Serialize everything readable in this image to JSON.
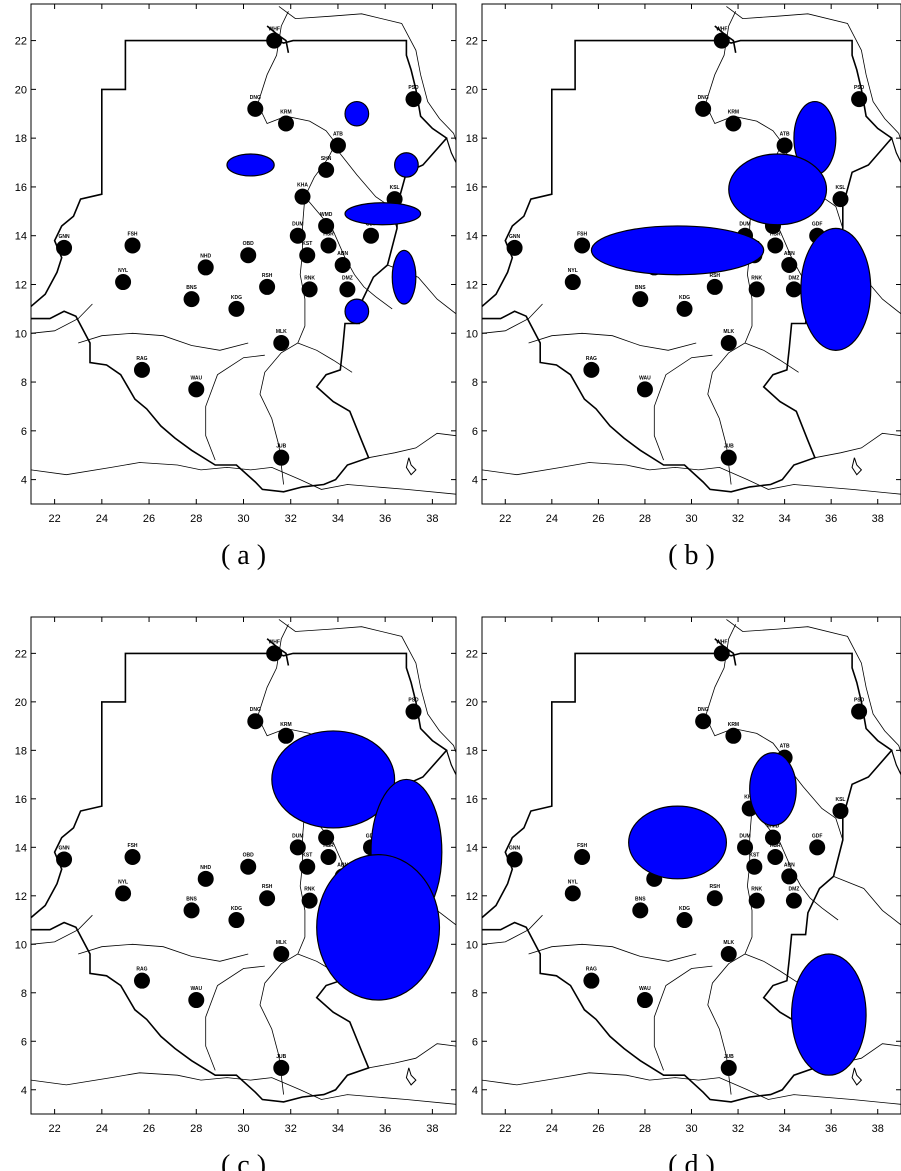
{
  "panels": [
    {
      "caption": "( a )",
      "ellipses": [
        {
          "lon": 34.8,
          "lat": 19.0,
          "rx": 0.5,
          "ry": 0.5
        },
        {
          "lon": 30.3,
          "lat": 16.9,
          "rx": 1.0,
          "ry": 0.45
        },
        {
          "lon": 36.9,
          "lat": 16.9,
          "rx": 0.5,
          "ry": 0.5
        },
        {
          "lon": 35.9,
          "lat": 14.9,
          "rx": 1.6,
          "ry": 0.45
        },
        {
          "lon": 36.8,
          "lat": 12.3,
          "rx": 0.5,
          "ry": 1.1
        },
        {
          "lon": 34.8,
          "lat": 10.9,
          "rx": 0.5,
          "ry": 0.5
        }
      ]
    },
    {
      "caption": "( b )",
      "ellipses": [
        {
          "lon": 35.3,
          "lat": 18.0,
          "rx": 0.9,
          "ry": 1.5
        },
        {
          "lon": 33.7,
          "lat": 15.9,
          "rx": 2.1,
          "ry": 1.45
        },
        {
          "lon": 29.4,
          "lat": 13.4,
          "rx": 3.7,
          "ry": 1.0
        },
        {
          "lon": 36.2,
          "lat": 11.8,
          "rx": 1.5,
          "ry": 2.5
        }
      ]
    },
    {
      "caption": "( c )",
      "ellipses": [
        {
          "lon": 33.8,
          "lat": 16.8,
          "rx": 2.6,
          "ry": 2.0
        },
        {
          "lon": 36.9,
          "lat": 13.8,
          "rx": 1.5,
          "ry": 3.0
        },
        {
          "lon": 35.7,
          "lat": 10.7,
          "rx": 2.6,
          "ry": 3.0
        }
      ]
    },
    {
      "caption": "( d )",
      "ellipses": [
        {
          "lon": 33.5,
          "lat": 16.4,
          "rx": 1.0,
          "ry": 1.5
        },
        {
          "lon": 29.4,
          "lat": 14.2,
          "rx": 2.1,
          "ry": 1.5
        },
        {
          "lon": 35.9,
          "lat": 7.1,
          "rx": 1.6,
          "ry": 2.5
        }
      ]
    }
  ],
  "axes": {
    "lon_ticks": [
      "22",
      "24",
      "26",
      "28",
      "30",
      "32",
      "34",
      "36",
      "38"
    ],
    "lat_ticks": [
      "4",
      "6",
      "8",
      "10",
      "12",
      "14",
      "16",
      "18",
      "20",
      "22"
    ],
    "lon_range": [
      21,
      39
    ],
    "lat_range": [
      3,
      23.5
    ]
  },
  "stations": [
    {
      "code": "WHF",
      "lon": 31.3,
      "lat": 22.0
    },
    {
      "code": "PSD",
      "lon": 37.2,
      "lat": 19.6
    },
    {
      "code": "DNG",
      "lon": 30.5,
      "lat": 19.2
    },
    {
      "code": "KRM",
      "lon": 31.8,
      "lat": 18.6
    },
    {
      "code": "ATB",
      "lon": 34.0,
      "lat": 17.7
    },
    {
      "code": "SHN",
      "lon": 33.5,
      "lat": 16.7
    },
    {
      "code": "KHA",
      "lon": 32.5,
      "lat": 15.6
    },
    {
      "code": "KSL",
      "lon": 36.4,
      "lat": 15.5
    },
    {
      "code": "WMD",
      "lon": 33.5,
      "lat": 14.4
    },
    {
      "code": "GDF",
      "lon": 35.4,
      "lat": 14.0
    },
    {
      "code": "DUM",
      "lon": 32.3,
      "lat": 14.0
    },
    {
      "code": "GNN",
      "lon": 22.4,
      "lat": 13.5
    },
    {
      "code": "FSH",
      "lon": 25.3,
      "lat": 13.6
    },
    {
      "code": "HSR",
      "lon": 33.6,
      "lat": 13.6
    },
    {
      "code": "KST",
      "lon": 32.7,
      "lat": 13.2
    },
    {
      "code": "OBD",
      "lon": 30.2,
      "lat": 13.2
    },
    {
      "code": "ABN",
      "lon": 34.2,
      "lat": 12.8
    },
    {
      "code": "NHD",
      "lon": 28.4,
      "lat": 12.7
    },
    {
      "code": "NYL",
      "lon": 24.9,
      "lat": 12.1
    },
    {
      "code": "RSH",
      "lon": 31.0,
      "lat": 11.9
    },
    {
      "code": "DMZ",
      "lon": 34.4,
      "lat": 11.8
    },
    {
      "code": "RNK",
      "lon": 32.8,
      "lat": 11.8
    },
    {
      "code": "BNS",
      "lon": 27.8,
      "lat": 11.4
    },
    {
      "code": "KDG",
      "lon": 29.7,
      "lat": 11.0
    },
    {
      "code": "MLK",
      "lon": 31.6,
      "lat": 9.6
    },
    {
      "code": "RAG",
      "lon": 25.7,
      "lat": 8.5
    },
    {
      "code": "WAU",
      "lon": 28.0,
      "lat": 7.7
    },
    {
      "code": "JUB",
      "lon": 31.6,
      "lat": 4.9
    }
  ],
  "colors": {
    "ellipse_fill": "#0000ff",
    "station_fill": "#000000",
    "frame": "#000000"
  }
}
